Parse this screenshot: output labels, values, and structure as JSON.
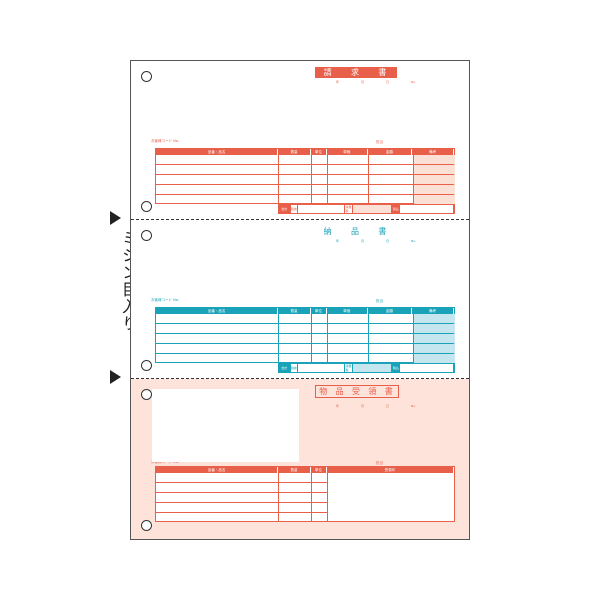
{
  "side_label": "ミシン目入り",
  "colors": {
    "invoice": "#e8604a",
    "delivery": "#1aa3b8",
    "receipt": "#e8604a",
    "receipt_bg": "#fde3da",
    "invoice_shade": "#fbe0d6",
    "delivery_shade": "#c5e6ee"
  },
  "date_labels": [
    "年",
    "月",
    "日",
    "No."
  ],
  "customer_code": "お客様コード No.",
  "staff": "担当",
  "columns_full": [
    "品番・品名",
    "数量",
    "単位",
    "単価",
    "金額",
    "備考"
  ],
  "columns_receipt": [
    "品番・品名",
    "数量",
    "単位",
    "受領印"
  ],
  "footer": {
    "total": "合計",
    "tax_excluded": "税抜",
    "tax": "消費税",
    "tax_included": "税込"
  },
  "sections": [
    {
      "title": [
        "請",
        "求",
        "書"
      ]
    },
    {
      "title": [
        "納",
        "品",
        "書"
      ]
    },
    {
      "title": [
        "物",
        "品",
        "受",
        "領",
        "書"
      ]
    }
  ]
}
